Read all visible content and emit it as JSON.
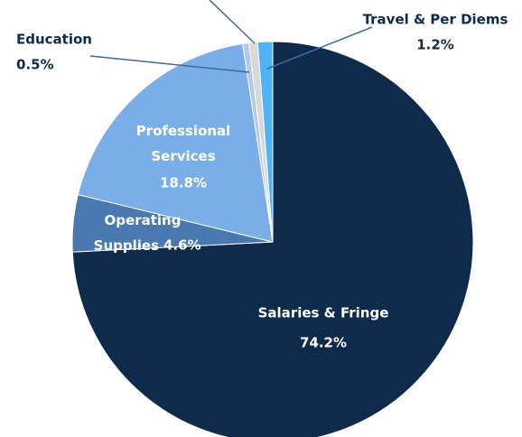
{
  "chart_data": {
    "type": "pie",
    "categories": [
      "Salaries & Fringe",
      "Operating Supplies",
      "Professional Services",
      "Education",
      null,
      "Travel & Per Diems"
    ],
    "values": [
      74.2,
      4.6,
      18.8,
      0.5,
      0.7,
      1.2
    ],
    "value_labels": [
      "74.2%",
      "4.6%",
      "18.8%",
      "0.5%",
      null,
      "1.2%"
    ],
    "colors": [
      "#0f2b4c",
      "#4a78b0",
      "#7aaee8",
      "#b7c7e6",
      "#d9d9d9",
      "#4fb3f6"
    ]
  }
}
